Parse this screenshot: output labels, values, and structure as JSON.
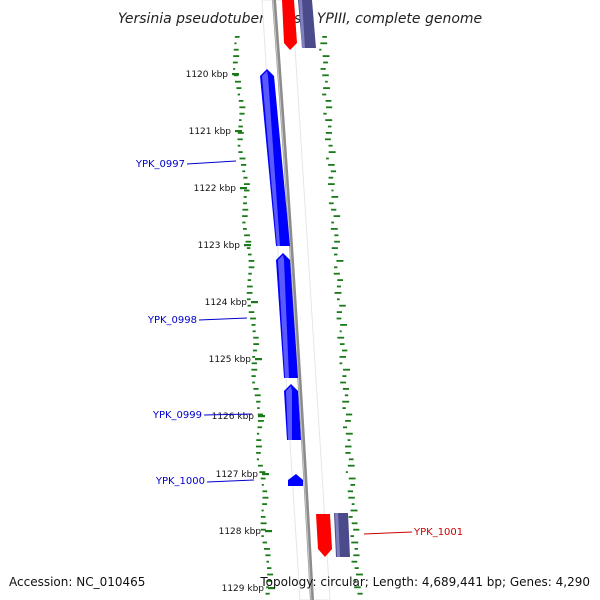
{
  "title": "Yersinia pseudotuberculosis YPIII, complete genome",
  "footer": {
    "accession": "Accession: NC_010465",
    "topology": "Topology: circular; Length: 4,689,441 bp; Genes: 4,290"
  },
  "colors": {
    "forward_gene": "#0000ff",
    "reverse_gene": "#ff0000",
    "rna_gene": "#4b4b8c",
    "backbone": "#8c8c8c",
    "gc_ticks": "#1a7a1a",
    "forward_label": "#0000cc",
    "reverse_label": "#cc0000"
  },
  "ticks": [
    {
      "label": "1120 kbp"
    },
    {
      "label": "1121 kbp"
    },
    {
      "label": "1122 kbp"
    },
    {
      "label": "1123 kbp"
    },
    {
      "label": "1124 kbp"
    },
    {
      "label": "1125 kbp"
    },
    {
      "label": "1126 kbp"
    },
    {
      "label": "1127 kbp"
    },
    {
      "label": "1128 kbp"
    },
    {
      "label": "1129 kbp"
    }
  ],
  "gene_labels": [
    {
      "name": "YPK_0997",
      "strand": "forward"
    },
    {
      "name": "YPK_0998",
      "strand": "forward"
    },
    {
      "name": "YPK_0999",
      "strand": "forward"
    },
    {
      "name": "YPK_1000",
      "strand": "forward"
    },
    {
      "name": "YPK_1001",
      "strand": "reverse"
    }
  ]
}
